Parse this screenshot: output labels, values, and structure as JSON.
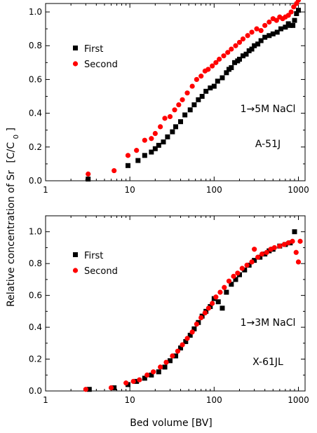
{
  "ylabel_prefix": "Relative concentration of Sr",
  "ylabel_unit_open": "[C/C",
  "ylabel_unit_sub": "0",
  "ylabel_unit_close": "]",
  "xlabel": "Bed volume [BV]",
  "colors": {
    "first": "#000000",
    "second": "#ff0000"
  },
  "chart_data": [
    {
      "type": "scatter",
      "x_scale": "log",
      "xlim": [
        1,
        1200
      ],
      "ylim": [
        0,
        1.05
      ],
      "xticks": [
        "1",
        "10",
        "100",
        "1000"
      ],
      "yticks": [
        "0.0",
        "0.2",
        "0.4",
        "0.6",
        "0.8",
        "1.0"
      ],
      "legend_position": "top-left",
      "annotations": [
        "1→5M  NaCl",
        "A-51J"
      ],
      "series": [
        {
          "name": "First",
          "x": [
            3.2,
            9.5,
            12.5,
            15,
            18,
            20,
            22,
            25,
            28,
            32,
            35,
            40,
            45,
            52,
            58,
            65,
            72,
            80,
            90,
            100,
            110,
            125,
            140,
            150,
            160,
            175,
            190,
            200,
            220,
            240,
            260,
            280,
            300,
            330,
            360,
            400,
            450,
            500,
            560,
            620,
            700,
            760,
            800,
            860,
            900,
            950,
            1000
          ],
          "y": [
            0.01,
            0.09,
            0.12,
            0.15,
            0.17,
            0.19,
            0.21,
            0.23,
            0.26,
            0.29,
            0.32,
            0.35,
            0.39,
            0.42,
            0.45,
            0.48,
            0.5,
            0.53,
            0.55,
            0.56,
            0.59,
            0.61,
            0.64,
            0.66,
            0.67,
            0.7,
            0.71,
            0.72,
            0.74,
            0.75,
            0.77,
            0.78,
            0.8,
            0.81,
            0.83,
            0.85,
            0.86,
            0.87,
            0.88,
            0.9,
            0.91,
            0.93,
            0.92,
            0.92,
            0.95,
            0.99,
            1.01
          ]
        },
        {
          "name": "Second",
          "x": [
            3.2,
            6.5,
            9.5,
            12,
            15,
            18,
            20,
            23,
            26,
            30,
            34,
            38,
            42,
            48,
            55,
            62,
            70,
            78,
            85,
            95,
            105,
            115,
            130,
            145,
            160,
            180,
            200,
            220,
            250,
            280,
            320,
            360,
            400,
            450,
            500,
            550,
            600,
            650,
            700,
            760,
            820,
            880,
            950,
            1000
          ],
          "y": [
            0.04,
            0.06,
            0.15,
            0.18,
            0.24,
            0.25,
            0.28,
            0.32,
            0.37,
            0.38,
            0.42,
            0.45,
            0.48,
            0.52,
            0.56,
            0.6,
            0.62,
            0.65,
            0.66,
            0.68,
            0.7,
            0.72,
            0.74,
            0.76,
            0.78,
            0.8,
            0.82,
            0.84,
            0.86,
            0.88,
            0.9,
            0.89,
            0.92,
            0.94,
            0.96,
            0.95,
            0.97,
            0.96,
            0.97,
            0.98,
            1.0,
            1.03,
            1.05,
            1.07
          ]
        }
      ]
    },
    {
      "type": "scatter",
      "x_scale": "log",
      "xlim": [
        1,
        1200
      ],
      "ylim": [
        0,
        1.1
      ],
      "xticks": [
        "1",
        "10",
        "100",
        "1000"
      ],
      "yticks": [
        "0.0",
        "0.2",
        "0.4",
        "0.6",
        "0.8",
        "1.0"
      ],
      "legend_position": "top-left",
      "annotations": [
        "1→3M  NaCl",
        "X-61JL"
      ],
      "series": [
        {
          "name": "First",
          "x": [
            3.3,
            6.5,
            9.5,
            12,
            15,
            18,
            22,
            26,
            30,
            35,
            40,
            46,
            52,
            58,
            65,
            72,
            80,
            90,
            100,
            112,
            125,
            140,
            160,
            180,
            200,
            230,
            260,
            300,
            350,
            400,
            450,
            500,
            600,
            700,
            800,
            900
          ],
          "y": [
            0.01,
            0.02,
            0.04,
            0.06,
            0.08,
            0.1,
            0.12,
            0.15,
            0.19,
            0.22,
            0.27,
            0.31,
            0.35,
            0.39,
            0.43,
            0.47,
            0.5,
            0.53,
            0.58,
            0.56,
            0.52,
            0.62,
            0.67,
            0.7,
            0.73,
            0.76,
            0.79,
            0.82,
            0.84,
            0.86,
            0.88,
            0.89,
            0.91,
            0.92,
            0.93,
            1.0
          ]
        },
        {
          "name": "Second",
          "x": [
            3.0,
            6.0,
            9.0,
            11,
            13,
            16,
            19,
            23,
            27,
            32,
            37,
            42,
            48,
            55,
            62,
            70,
            78,
            86,
            95,
            105,
            118,
            132,
            150,
            170,
            190,
            215,
            245,
            280,
            300,
            330,
            370,
            420,
            470,
            520,
            600,
            680,
            760,
            850,
            940,
            1000,
            1050
          ],
          "y": [
            0.01,
            0.02,
            0.05,
            0.06,
            0.07,
            0.1,
            0.12,
            0.15,
            0.18,
            0.22,
            0.25,
            0.29,
            0.33,
            0.37,
            0.42,
            0.46,
            0.49,
            0.52,
            0.55,
            0.59,
            0.62,
            0.65,
            0.69,
            0.72,
            0.74,
            0.77,
            0.79,
            0.81,
            0.89,
            0.84,
            0.86,
            0.87,
            0.89,
            0.9,
            0.91,
            0.92,
            0.93,
            0.94,
            0.87,
            0.81,
            0.94
          ]
        }
      ]
    }
  ]
}
